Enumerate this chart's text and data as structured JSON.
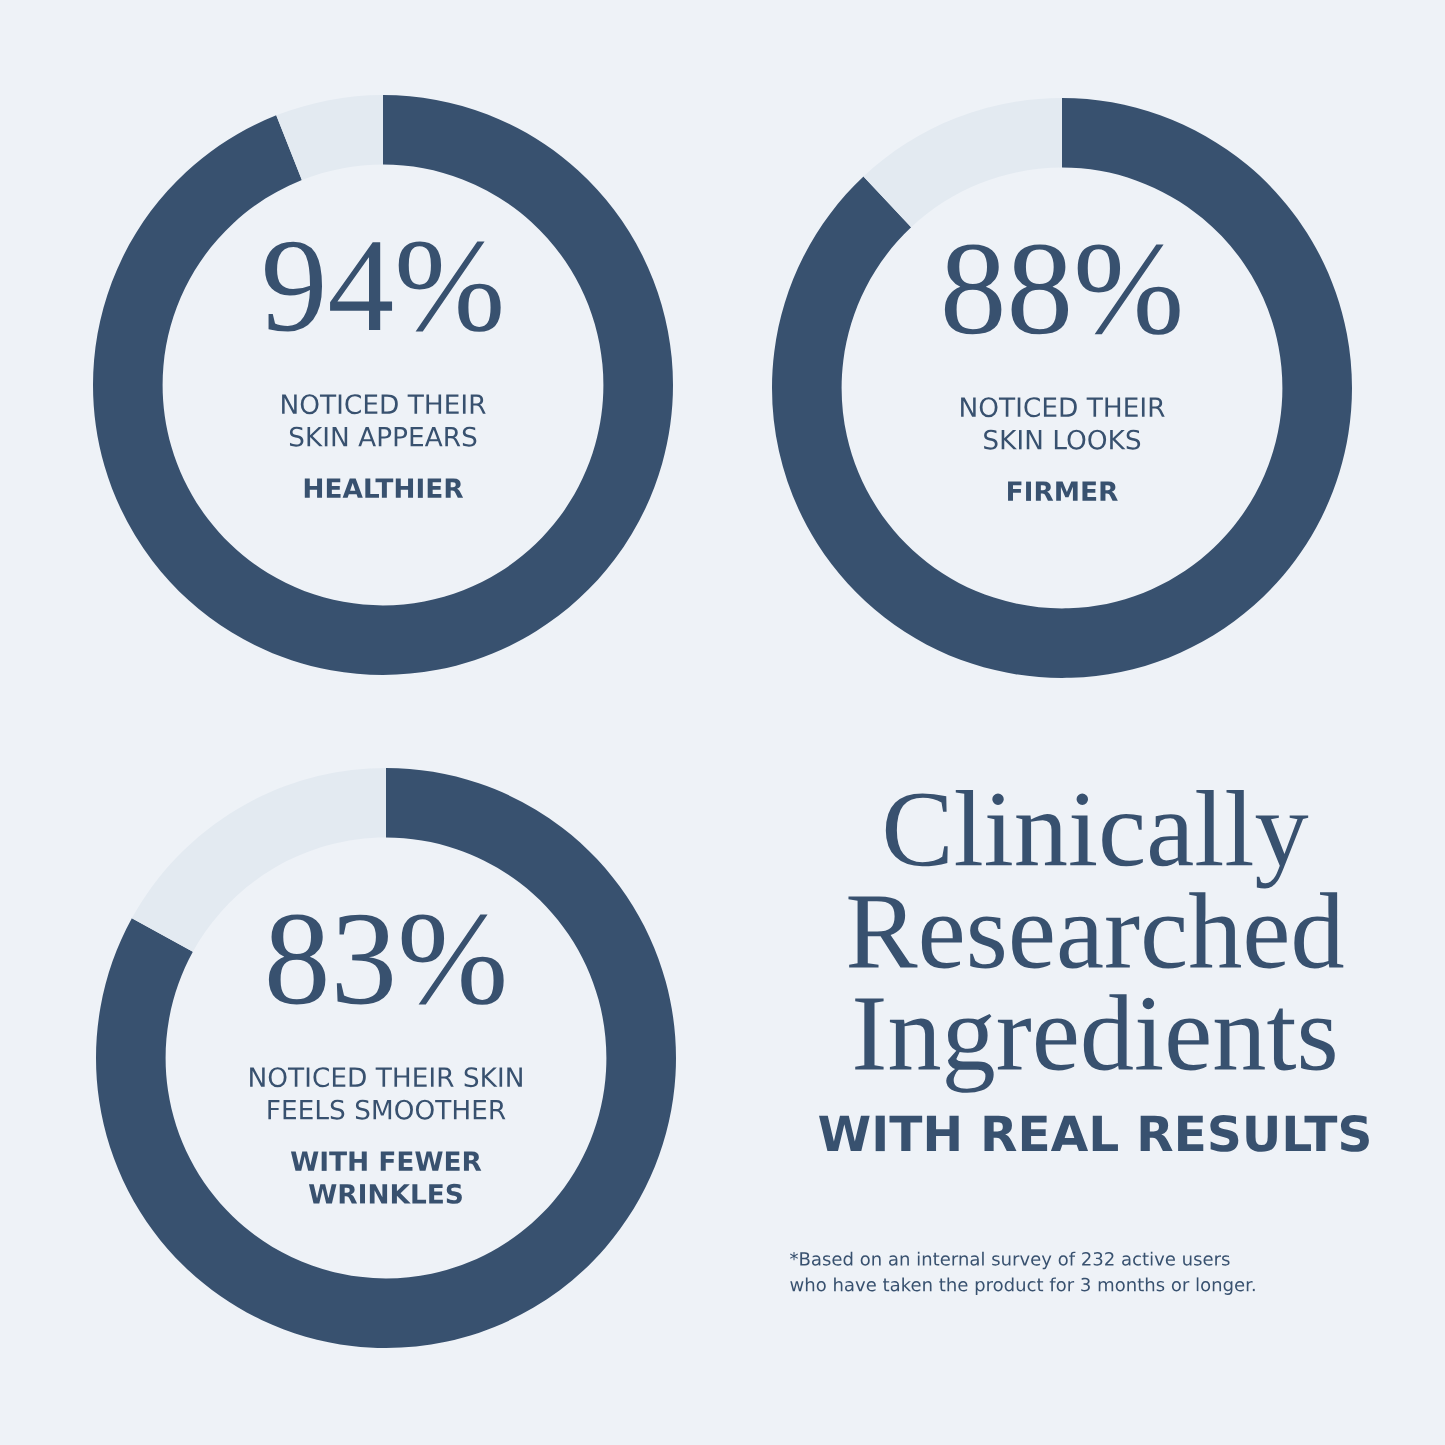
{
  "chart_data": [
    {
      "type": "donut",
      "categories": [
        null,
        null
      ],
      "values": [
        94,
        6
      ],
      "colors": [
        "#38516f",
        "#e3eaf1"
      ],
      "value_labels": [
        "94%",
        null
      ],
      "annotations": [
        "NOTICED THEIR\nSKIN APPEARS",
        "HEALTHIER"
      ]
    },
    {
      "type": "donut",
      "categories": [
        null,
        null
      ],
      "values": [
        88,
        12
      ],
      "colors": [
        "#38516f",
        "#e3eaf1"
      ],
      "value_labels": [
        "88%",
        null
      ],
      "annotations": [
        "NOTICED THEIR\nSKIN LOOKS",
        "FIRMER"
      ]
    },
    {
      "type": "donut",
      "categories": [
        null,
        null
      ],
      "values": [
        83,
        17
      ],
      "colors": [
        "#38516f",
        "#e3eaf1"
      ],
      "value_labels": [
        "83%",
        null
      ],
      "annotations": [
        "NOTICED THEIR SKIN\nFEELS SMOOTHER",
        "WITH FEWER\nWRINKLES"
      ]
    },
    {
      "type": "other",
      "title": "Clinically\nResearched\nIngredients",
      "subtitle": "WITH REAL RESULTS",
      "annotations": [
        "*Based on an internal survey of 232 active users\nwho have taken the product for 3 months or longer."
      ]
    }
  ]
}
